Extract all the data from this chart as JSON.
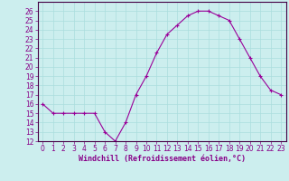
{
  "x": [
    0,
    1,
    2,
    3,
    4,
    5,
    6,
    7,
    8,
    9,
    10,
    11,
    12,
    13,
    14,
    15,
    16,
    17,
    18,
    19,
    20,
    21,
    22,
    23
  ],
  "y": [
    16.0,
    15.0,
    15.0,
    15.0,
    15.0,
    15.0,
    13.0,
    12.0,
    14.0,
    17.0,
    19.0,
    21.5,
    23.5,
    24.5,
    25.5,
    26.0,
    26.0,
    25.5,
    25.0,
    23.0,
    21.0,
    19.0,
    17.5,
    17.0
  ],
  "line_color": "#990099",
  "marker": "+",
  "marker_color": "#990099",
  "bg_color": "#cceeee",
  "grid_color": "#aadddd",
  "xlabel": "Windchill (Refroidissement éolien,°C)",
  "ylabel": "",
  "ylim": [
    12,
    27
  ],
  "xlim_min": -0.5,
  "xlim_max": 23.5,
  "yticks": [
    12,
    13,
    14,
    15,
    16,
    17,
    18,
    19,
    20,
    21,
    22,
    23,
    24,
    25,
    26
  ],
  "xticks": [
    0,
    1,
    2,
    3,
    4,
    5,
    6,
    7,
    8,
    9,
    10,
    11,
    12,
    13,
    14,
    15,
    16,
    17,
    18,
    19,
    20,
    21,
    22,
    23
  ],
  "tick_fontsize": 5.5,
  "xlabel_fontsize": 6.0,
  "axis_color": "#880088",
  "fig_bg": "#cceeee",
  "spine_color": "#440044",
  "linewidth": 0.8,
  "markersize": 3.5,
  "markeredgewidth": 0.8
}
